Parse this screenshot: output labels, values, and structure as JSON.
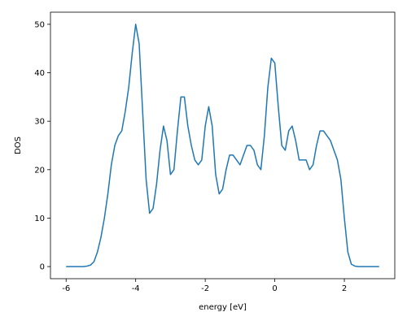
{
  "chart_data": {
    "type": "line",
    "xlabel": "energy [eV]",
    "ylabel": "DOS",
    "x": [
      -6.0,
      -5.9,
      -5.8,
      -5.7,
      -5.6,
      -5.5,
      -5.4,
      -5.3,
      -5.2,
      -5.1,
      -5.0,
      -4.9,
      -4.8,
      -4.7,
      -4.6,
      -4.5,
      -4.4,
      -4.3,
      -4.2,
      -4.1,
      -4.0,
      -3.9,
      -3.8,
      -3.7,
      -3.6,
      -3.5,
      -3.4,
      -3.3,
      -3.2,
      -3.1,
      -3.0,
      -2.9,
      -2.8,
      -2.7,
      -2.6,
      -2.5,
      -2.4,
      -2.3,
      -2.2,
      -2.1,
      -2.0,
      -1.9,
      -1.8,
      -1.7,
      -1.6,
      -1.5,
      -1.4,
      -1.3,
      -1.2,
      -1.1,
      -1.0,
      -0.9,
      -0.8,
      -0.7,
      -0.6,
      -0.5,
      -0.4,
      -0.3,
      -0.2,
      -0.1,
      0.0,
      0.1,
      0.2,
      0.3,
      0.4,
      0.5,
      0.6,
      0.7,
      0.8,
      0.9,
      1.0,
      1.1,
      1.2,
      1.3,
      1.4,
      1.5,
      1.6,
      1.7,
      1.8,
      1.9,
      2.0,
      2.1,
      2.2,
      2.3,
      2.4,
      2.5,
      2.6,
      2.7,
      2.8,
      2.9,
      3.0
    ],
    "series": [
      {
        "color": "#1f77b4",
        "values": [
          0,
          0,
          0,
          0,
          0,
          0,
          0.1,
          0.3,
          1,
          3,
          6,
          10,
          15,
          21,
          25,
          27,
          28,
          32,
          37,
          44,
          50,
          46,
          32,
          18,
          11,
          12,
          17,
          24,
          29,
          26,
          19,
          20,
          28,
          35,
          35,
          29,
          25,
          22,
          21,
          22,
          29,
          33,
          29,
          19,
          15,
          16,
          20,
          23,
          23,
          22,
          21,
          23,
          25,
          25,
          24,
          21,
          20,
          27,
          37,
          43,
          42,
          33,
          25,
          24,
          28,
          29,
          26,
          22,
          22,
          22,
          20,
          21,
          25,
          28,
          28,
          27,
          26,
          24,
          22,
          18,
          10,
          3,
          0.5,
          0.1,
          0,
          0,
          0,
          0,
          0,
          0,
          0
        ]
      }
    ],
    "xlim": [
      -6.45,
      3.45
    ],
    "ylim": [
      -2.5,
      52.5
    ],
    "xticks": [
      -6,
      -4,
      -2,
      0,
      2
    ],
    "yticks": [
      0,
      10,
      20,
      30,
      40,
      50
    ]
  }
}
